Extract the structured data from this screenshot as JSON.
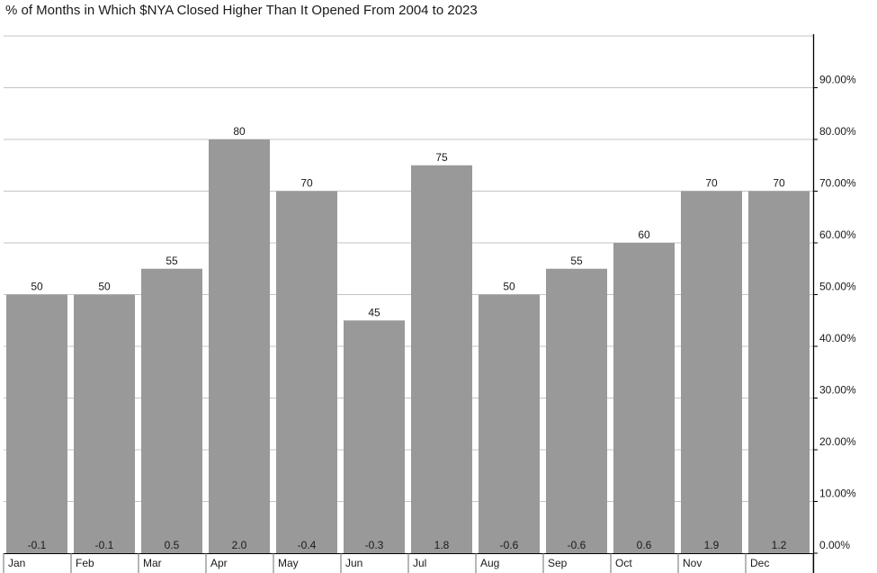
{
  "chart_data": {
    "type": "bar",
    "title": "% of Months in Which $NYA Closed Higher Than It Opened From 2004 to 2023",
    "categories": [
      "Jan",
      "Feb",
      "Mar",
      "Apr",
      "May",
      "Jun",
      "Jul",
      "Aug",
      "Sep",
      "Oct",
      "Nov",
      "Dec"
    ],
    "values": [
      50,
      50,
      55,
      80,
      70,
      45,
      75,
      50,
      55,
      60,
      70,
      70
    ],
    "secondary_labels": [
      "-0.1",
      "-0.1",
      "0.5",
      "2.0",
      "-0.4",
      "-0.3",
      "1.8",
      "-0.6",
      "-0.6",
      "0.6",
      "1.9",
      "1.2"
    ],
    "y_ticks": [
      "0.00%",
      "10.00%",
      "20.00%",
      "30.00%",
      "40.00%",
      "50.00%",
      "60.00%",
      "70.00%",
      "80.00%",
      "90.00%"
    ],
    "ylim": [
      0,
      100
    ],
    "y_axis_side": "right",
    "grid": true,
    "bar_color": "#999999",
    "grid_color": "#c4c4c4",
    "axis_color": "#000000"
  }
}
